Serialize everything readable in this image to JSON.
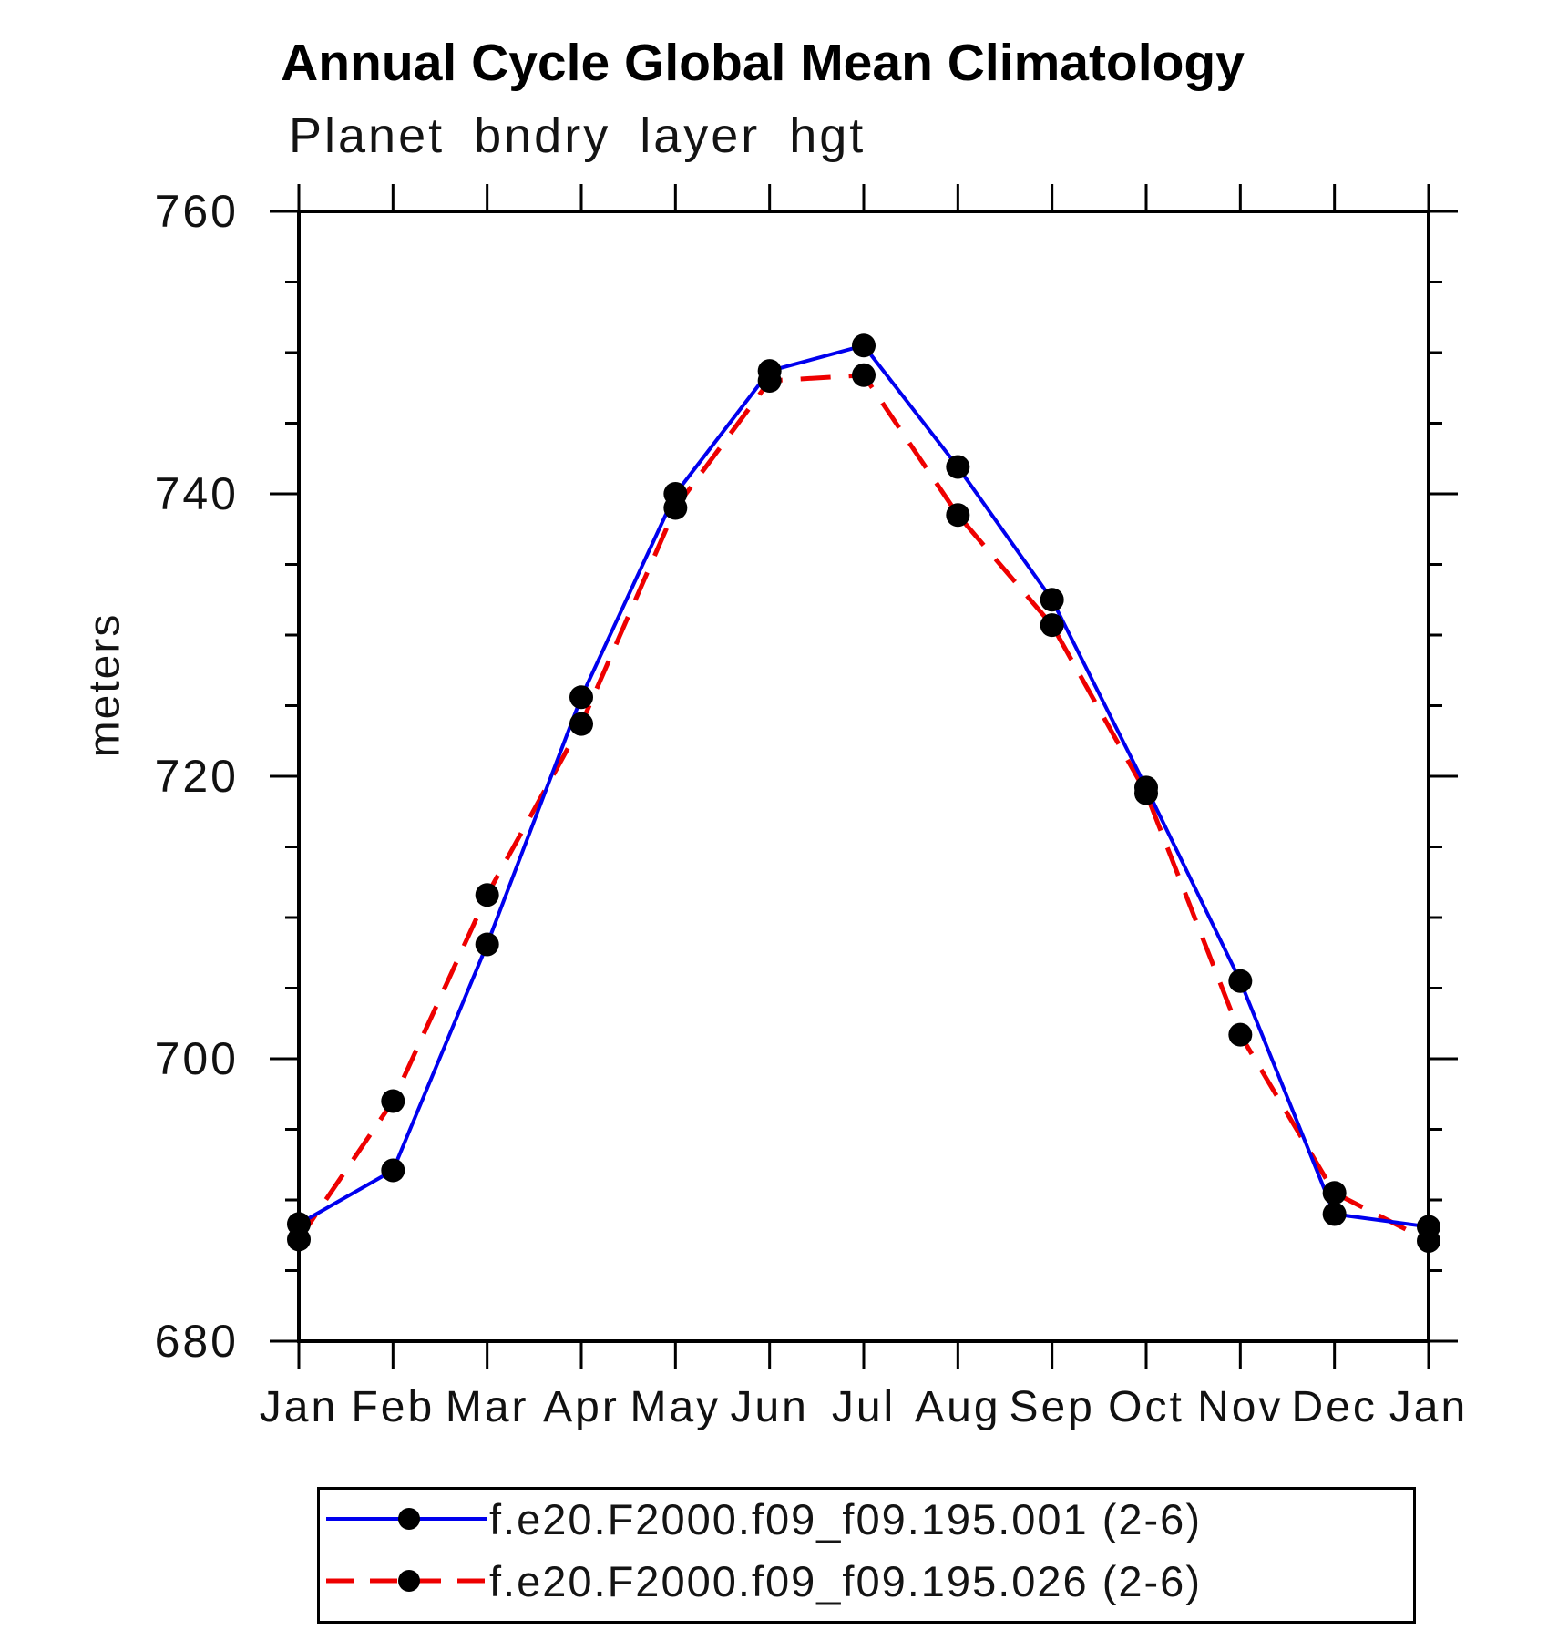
{
  "page": {
    "background": "#ffffff"
  },
  "chart_data": {
    "type": "line",
    "title": "Annual Cycle Global Mean Climatology",
    "subtitle": "Planet bndry layer hgt",
    "ylabel": "meters",
    "x_categories": [
      "Jan",
      "Feb",
      "Mar",
      "Apr",
      "May",
      "Jun",
      "Jul",
      "Aug",
      "Sep",
      "Oct",
      "Nov",
      "Dec",
      "Jan"
    ],
    "ylim": [
      680,
      760
    ],
    "ytick_labels": [
      "680",
      "700",
      "720",
      "740",
      "760"
    ],
    "ytick_minor_step": 5,
    "grid": "off",
    "legend_position": "bottom",
    "axis_color": "#000000",
    "marker": "filled-circle",
    "series": [
      {
        "name": "f.e20.F2000.f09_f09.195.001 (2-6)",
        "color": "#0000ee",
        "style": "solid",
        "marker_color": "#000000",
        "values": [
          688.3,
          692.1,
          708.1,
          725.6,
          740.0,
          748.7,
          750.5,
          741.9,
          732.5,
          719.2,
          705.5,
          689.0,
          688.1
        ]
      },
      {
        "name": "f.e20.F2000.f09_f09.195.026 (2-6)",
        "color": "#ee0000",
        "style": "dashed",
        "marker_color": "#000000",
        "values": [
          687.2,
          697.0,
          711.6,
          723.7,
          739.0,
          748.0,
          748.4,
          738.5,
          730.7,
          718.8,
          701.7,
          690.5,
          687.1
        ]
      }
    ]
  }
}
